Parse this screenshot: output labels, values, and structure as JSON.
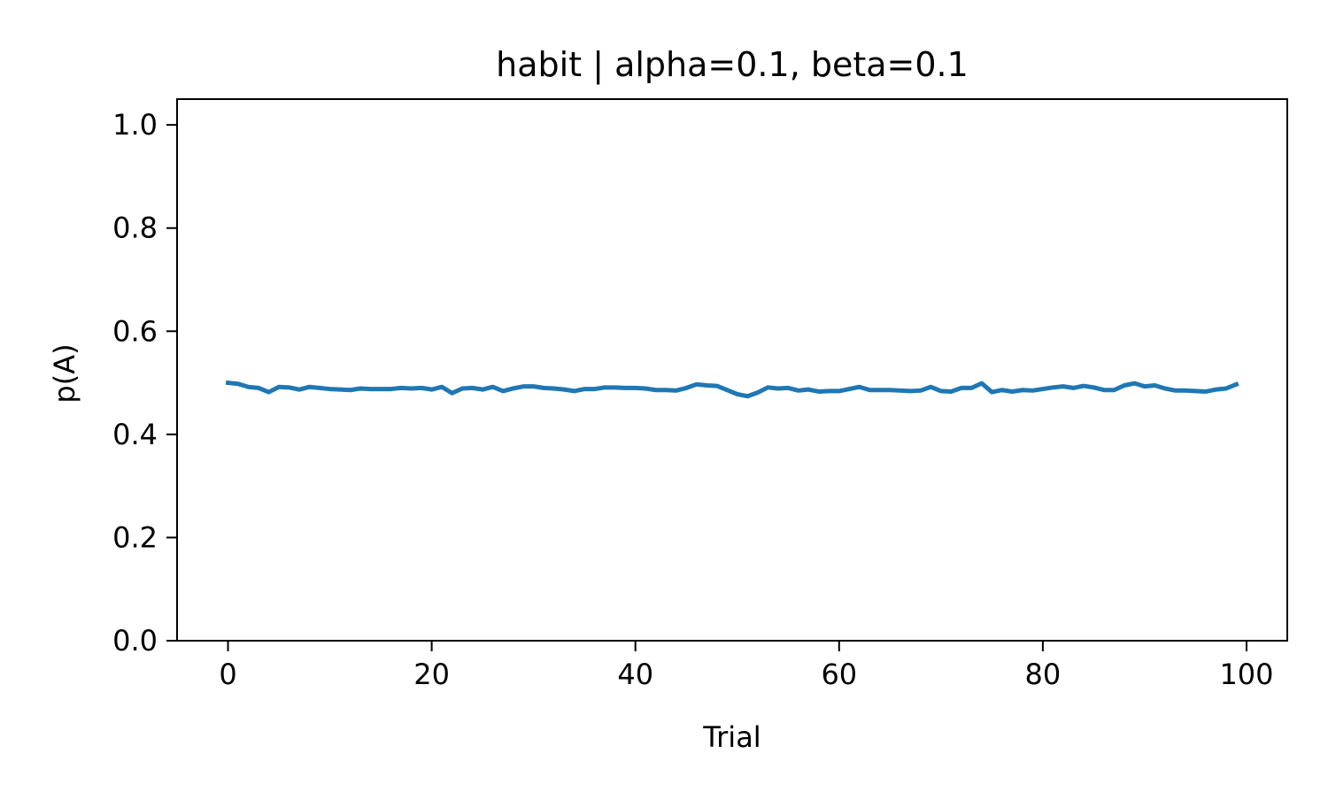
{
  "chart_data": {
    "type": "line",
    "title": "habit | alpha=0.1, beta=0.1",
    "xlabel": "Trial",
    "ylabel": "p(A)",
    "xlim": [
      -5,
      104
    ],
    "ylim": [
      0.0,
      1.05
    ],
    "xticks": [
      0,
      20,
      40,
      60,
      80,
      100
    ],
    "yticks": [
      0.0,
      0.2,
      0.4,
      0.6,
      0.8,
      1.0
    ],
    "xtick_labels": [
      "0",
      "20",
      "40",
      "60",
      "80",
      "100"
    ],
    "ytick_labels": [
      "0.0",
      "0.2",
      "0.4",
      "0.6",
      "0.8",
      "1.0"
    ],
    "grid": false,
    "legend": "none",
    "series": [
      {
        "color": "#1f77b4",
        "x": [
          0,
          1,
          2,
          3,
          4,
          5,
          6,
          7,
          8,
          9,
          10,
          11,
          12,
          13,
          14,
          15,
          16,
          17,
          18,
          19,
          20,
          21,
          22,
          23,
          24,
          25,
          26,
          27,
          28,
          29,
          30,
          31,
          32,
          33,
          34,
          35,
          36,
          37,
          38,
          39,
          40,
          41,
          42,
          43,
          44,
          45,
          46,
          47,
          48,
          49,
          50,
          51,
          52,
          53,
          54,
          55,
          56,
          57,
          58,
          59,
          60,
          61,
          62,
          63,
          64,
          65,
          66,
          67,
          68,
          69,
          70,
          71,
          72,
          73,
          74,
          75,
          76,
          77,
          78,
          79,
          80,
          81,
          82,
          83,
          84,
          85,
          86,
          87,
          88,
          89,
          90,
          91,
          92,
          93,
          94,
          95,
          96,
          97,
          98,
          99
        ],
        "y": [
          0.5,
          0.498,
          0.492,
          0.49,
          0.482,
          0.492,
          0.491,
          0.487,
          0.492,
          0.49,
          0.488,
          0.487,
          0.486,
          0.489,
          0.488,
          0.488,
          0.488,
          0.49,
          0.489,
          0.49,
          0.487,
          0.492,
          0.48,
          0.489,
          0.49,
          0.487,
          0.492,
          0.484,
          0.489,
          0.493,
          0.493,
          0.49,
          0.489,
          0.487,
          0.484,
          0.488,
          0.488,
          0.491,
          0.491,
          0.49,
          0.49,
          0.489,
          0.486,
          0.486,
          0.485,
          0.49,
          0.497,
          0.495,
          0.494,
          0.486,
          0.478,
          0.474,
          0.481,
          0.491,
          0.489,
          0.49,
          0.485,
          0.487,
          0.483,
          0.484,
          0.484,
          0.488,
          0.492,
          0.486,
          0.486,
          0.486,
          0.485,
          0.484,
          0.485,
          0.492,
          0.484,
          0.483,
          0.49,
          0.49,
          0.499,
          0.482,
          0.486,
          0.483,
          0.486,
          0.485,
          0.488,
          0.491,
          0.493,
          0.49,
          0.494,
          0.491,
          0.486,
          0.486,
          0.495,
          0.499,
          0.493,
          0.495,
          0.489,
          0.485,
          0.485,
          0.484,
          0.483,
          0.487,
          0.489,
          0.497
        ]
      }
    ]
  }
}
